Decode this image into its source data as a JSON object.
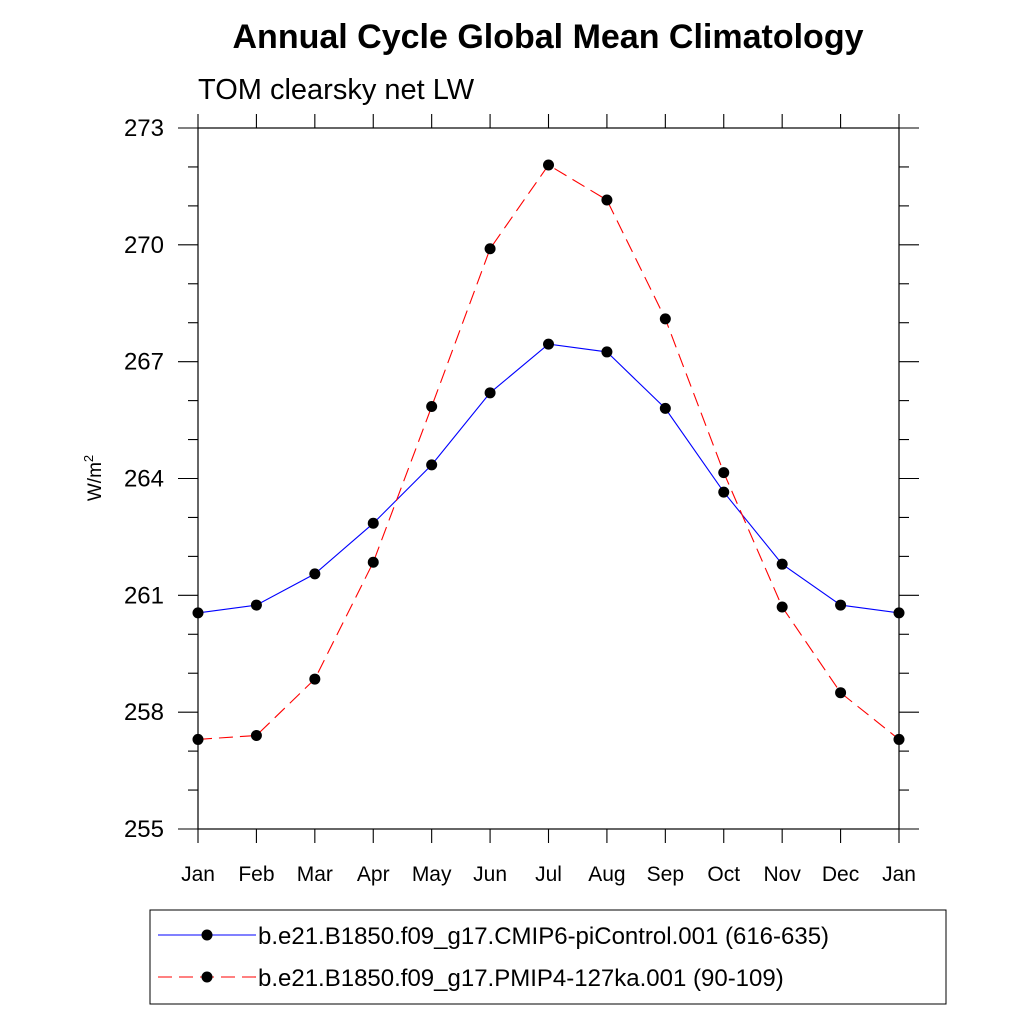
{
  "chart_data": {
    "type": "line",
    "title": "Annual Cycle Global Mean Climatology",
    "subtitle": "TOM clearsky net LW",
    "ylabel": "W/m",
    "ylabel_superscript": "2",
    "xlabel": "",
    "categories": [
      "Jan",
      "Feb",
      "Mar",
      "Apr",
      "May",
      "Jun",
      "Jul",
      "Aug",
      "Sep",
      "Oct",
      "Nov",
      "Dec",
      "Jan"
    ],
    "ylim": [
      255,
      273
    ],
    "yticks": [
      "255",
      "258",
      "261",
      "264",
      "267",
      "270",
      "273"
    ],
    "grid": false,
    "legend_position": "bottom",
    "series": [
      {
        "name": "b.e21.B1850.f09_g17.CMIP6-piControl.001 (616-635)",
        "color": "#0000ff",
        "dash": "solid",
        "marker": "filled-circle",
        "values": [
          260.55,
          260.75,
          261.55,
          262.85,
          264.35,
          266.2,
          267.45,
          267.25,
          265.8,
          263.65,
          261.8,
          260.75,
          260.55
        ]
      },
      {
        "name": "b.e21.B1850.f09_g17.PMIP4-127ka.001 (90-109)",
        "color": "#ff0000",
        "dash": "dashed",
        "marker": "filled-circle",
        "values": [
          257.3,
          257.4,
          258.85,
          261.85,
          265.85,
          269.9,
          272.05,
          271.15,
          268.1,
          264.15,
          260.7,
          258.5,
          257.3
        ]
      }
    ]
  }
}
